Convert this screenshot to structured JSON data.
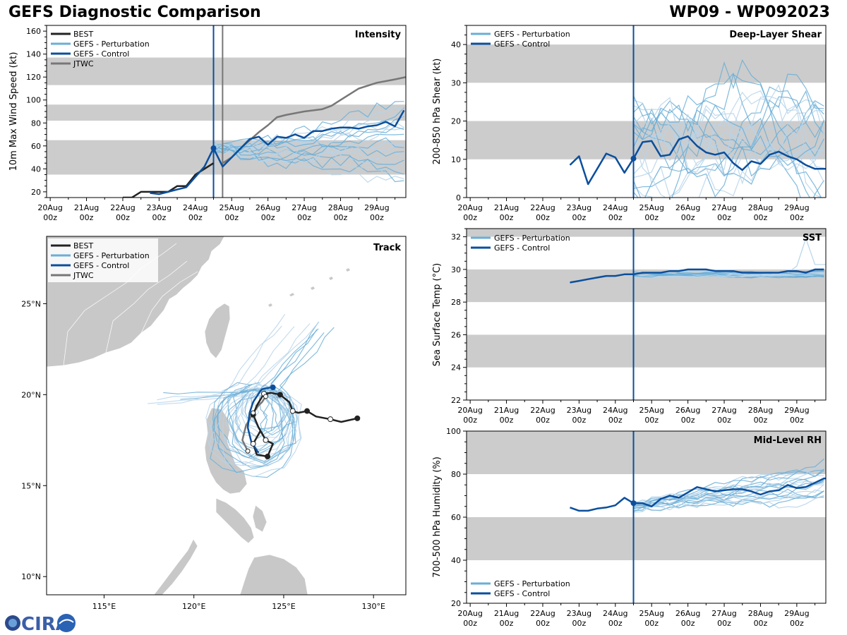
{
  "header": {
    "title": "GEFS Diagnostic Comparison",
    "storm_id": "WP09 - WP092023"
  },
  "colors": {
    "best": "#222222",
    "perturbation": "#6aaed6",
    "perturbation_light": "#b6d4ea",
    "control": "#0b4f9c",
    "jtwc": "#777777",
    "band": "#cccccc",
    "land": "#c8c8c8"
  },
  "logo": {
    "text": "CIRA"
  },
  "time_axis": {
    "tick_labels": [
      [
        "20Aug",
        "00z"
      ],
      [
        "21Aug",
        "00z"
      ],
      [
        "22Aug",
        "00z"
      ],
      [
        "23Aug",
        "00z"
      ],
      [
        "24Aug",
        "00z"
      ],
      [
        "25Aug",
        "00z"
      ],
      [
        "26Aug",
        "00z"
      ],
      [
        "27Aug",
        "00z"
      ],
      [
        "28Aug",
        "00z"
      ],
      [
        "29Aug",
        "00z"
      ]
    ],
    "init_day": 4.5,
    "xlim": [
      -0.1,
      9.8
    ]
  },
  "chart_data": [
    {
      "id": "intensity",
      "type": "line",
      "title": "Intensity",
      "ylabel": "10m Max Wind Speed (kt)",
      "ylim": [
        15,
        165
      ],
      "yticks": [
        20,
        40,
        60,
        80,
        100,
        120,
        140,
        160
      ],
      "bands": [
        [
          35,
          65
        ],
        [
          82,
          96
        ],
        [
          113,
          137
        ]
      ],
      "jtwc_init_day": 4.75,
      "legend": [
        "BEST",
        "GEFS - Perturbation",
        "GEFS - Control",
        "JTWC"
      ],
      "best": {
        "x": [
          2.0,
          2.25,
          2.5,
          2.75,
          3.0,
          3.25,
          3.5,
          3.75,
          4.0,
          4.25,
          4.5
        ],
        "y": [
          15,
          15,
          20,
          20,
          20,
          20,
          25,
          25,
          35,
          40,
          45
        ]
      },
      "control": {
        "x": [
          2.75,
          3.0,
          3.25,
          3.5,
          3.75,
          4.0,
          4.25,
          4.5,
          4.75,
          5.0,
          5.25,
          5.5,
          5.75,
          6.0,
          6.25,
          6.5,
          6.75,
          7.0,
          7.25,
          7.5,
          7.75,
          8.0,
          8.25,
          8.5,
          8.75,
          9.0,
          9.25,
          9.5,
          9.75
        ],
        "y": [
          19,
          18,
          20,
          22,
          24,
          33,
          42,
          58,
          42,
          50,
          58,
          66,
          68,
          61,
          68,
          67,
          70,
          67,
          73,
          73,
          75,
          76,
          76,
          75,
          77,
          78,
          81,
          77,
          91
        ]
      },
      "jtwc": {
        "x": [
          4.75,
          5.0,
          5.25,
          5.5,
          5.75,
          6.0,
          6.25,
          6.5,
          7.0,
          7.5,
          7.75,
          8.0,
          8.5,
          9.0,
          9.5,
          9.8
        ],
        "y": [
          45,
          50,
          58,
          65,
          72,
          78,
          85,
          87,
          90,
          92,
          95,
          100,
          110,
          115,
          118,
          120
        ]
      },
      "perturbation_summary": {
        "start_day": 4.5,
        "end_day": 9.8,
        "start_value": 58,
        "end_range": [
          28,
          100
        ]
      }
    },
    {
      "id": "shear",
      "type": "line",
      "title": "Deep-Layer Shear",
      "ylabel": "200-850 hPa Shear (kt)",
      "ylim": [
        0,
        45
      ],
      "yticks": [
        0,
        10,
        20,
        30,
        40
      ],
      "bands": [
        [
          10,
          20
        ],
        [
          30,
          40
        ]
      ],
      "legend": [
        "GEFS - Perturbation",
        "GEFS - Control"
      ],
      "control": {
        "x": [
          2.75,
          3.0,
          3.25,
          3.5,
          3.75,
          4.0,
          4.25,
          4.5,
          4.75,
          5.0,
          5.25,
          5.5,
          5.75,
          6.0,
          6.25,
          6.5,
          6.75,
          7.0,
          7.25,
          7.5,
          7.75,
          8.0,
          8.25,
          8.5,
          8.75,
          9.0,
          9.25,
          9.5,
          9.75,
          9.8
        ],
        "y": [
          8.5,
          10.8,
          3.5,
          7.5,
          11.5,
          10.5,
          6.5,
          10.2,
          14.5,
          14.8,
          10.8,
          11.2,
          15.2,
          16,
          13.5,
          11.8,
          11.2,
          11.8,
          9,
          7.2,
          9.5,
          8.8,
          11.2,
          12,
          10.8,
          10,
          8.5,
          7.5,
          7.5,
          7.5
        ]
      },
      "perturbation_summary": {
        "start_day": 4.5,
        "end_day": 9.8,
        "range": [
          1,
          35
        ]
      }
    },
    {
      "id": "sst",
      "type": "line",
      "title": "SST",
      "ylabel": "Sea Surface Temp (°C)",
      "ylim": [
        22,
        32.5
      ],
      "yticks": [
        22,
        24,
        26,
        28,
        30,
        32
      ],
      "bands": [
        [
          24,
          26
        ],
        [
          28,
          30
        ],
        [
          32,
          34
        ]
      ],
      "legend": [
        "GEFS - Perturbation",
        "GEFS - Control"
      ],
      "control": {
        "x": [
          2.75,
          3.0,
          3.25,
          3.5,
          3.75,
          4.0,
          4.25,
          4.5,
          4.75,
          5.0,
          5.25,
          5.5,
          5.75,
          6.0,
          6.25,
          6.5,
          6.75,
          7.0,
          7.25,
          7.5,
          7.75,
          8.0,
          8.25,
          8.5,
          8.75,
          9.0,
          9.25,
          9.5,
          9.75
        ],
        "y": [
          29.2,
          29.3,
          29.4,
          29.5,
          29.6,
          29.6,
          29.7,
          29.7,
          29.8,
          29.8,
          29.8,
          29.9,
          29.9,
          30.0,
          30.0,
          30.0,
          29.9,
          29.9,
          29.9,
          29.8,
          29.8,
          29.8,
          29.8,
          29.8,
          29.9,
          29.9,
          29.8,
          30.0,
          30.0
        ]
      },
      "perturbation_summary": {
        "start_day": 4.5,
        "end_day": 9.8,
        "range": [
          29.3,
          31.9
        ]
      }
    },
    {
      "id": "rh",
      "type": "line",
      "title": "Mid-Level RH",
      "ylabel": "700-500 hPa Humidity (%)",
      "ylim": [
        20,
        100
      ],
      "yticks": [
        20,
        40,
        60,
        80,
        100
      ],
      "bands": [
        [
          40,
          60
        ],
        [
          80,
          100
        ]
      ],
      "legend": [
        "GEFS - Perturbation",
        "GEFS - Control"
      ],
      "control": {
        "x": [
          2.75,
          3.0,
          3.25,
          3.5,
          3.75,
          4.0,
          4.25,
          4.5,
          4.75,
          5.0,
          5.25,
          5.5,
          5.75,
          6.0,
          6.25,
          6.5,
          6.75,
          7.0,
          7.25,
          7.5,
          7.75,
          8.0,
          8.25,
          8.5,
          8.75,
          9.0,
          9.25,
          9.5,
          9.75,
          9.8
        ],
        "y": [
          64.5,
          63,
          63,
          64,
          64.5,
          65.5,
          69,
          66.5,
          66.5,
          65,
          68.5,
          70,
          69,
          71.5,
          74,
          73,
          72,
          72.5,
          73,
          73,
          72,
          70.5,
          72,
          72.5,
          75,
          73.5,
          74,
          76,
          78,
          78
        ]
      },
      "perturbation_summary": {
        "start_day": 4.5,
        "end_day": 9.8,
        "range": [
          61,
          85
        ]
      }
    },
    {
      "id": "track",
      "type": "map",
      "title": "Track",
      "legend": [
        "BEST",
        "GEFS - Perturbation",
        "GEFS - Control",
        "JTWC"
      ],
      "xlim": [
        111.8,
        131.8
      ],
      "ylim": [
        9.0,
        28.7
      ],
      "lon_ticks": [
        115,
        120,
        125,
        130
      ],
      "lon_tick_labels": [
        "115°E",
        "120°E",
        "125°E",
        "130°E"
      ],
      "lat_ticks": [
        10,
        15,
        20,
        25
      ],
      "lat_tick_labels": [
        "10°N",
        "15°N",
        "20°N",
        "25°N"
      ],
      "best": {
        "lon": [
          129.1,
          128.2,
          127.6,
          126.8,
          126.3,
          125.8,
          125.5,
          125.3,
          124.8,
          124.3,
          123.9,
          123.5,
          123.3,
          123.6,
          124.0,
          124.4,
          124.1,
          123.5,
          123.3,
          123.7
        ],
        "lat": [
          18.7,
          18.5,
          18.65,
          18.8,
          19.1,
          19.0,
          19.1,
          19.6,
          20.0,
          20.1,
          20.05,
          19.4,
          18.9,
          18.2,
          17.5,
          17.3,
          16.6,
          16.7,
          17.3,
          18.0
        ]
      },
      "control": {
        "lon": [
          123.6,
          123.2,
          123.0,
          123.1,
          123.3,
          123.5,
          123.7,
          123.8,
          124.0,
          124.4
        ],
        "lat": [
          16.8,
          17.4,
          18.2,
          19.0,
          19.6,
          19.9,
          20.2,
          20.3,
          20.35,
          20.4
        ]
      },
      "jtwc": {
        "lon": [
          123.0,
          122.7,
          122.9,
          123.3,
          123.6,
          123.8,
          124.0,
          124.1,
          124.0
        ],
        "lat": [
          16.9,
          17.5,
          18.3,
          19.0,
          19.4,
          19.6,
          19.9,
          20.0,
          20.1
        ]
      }
    }
  ]
}
